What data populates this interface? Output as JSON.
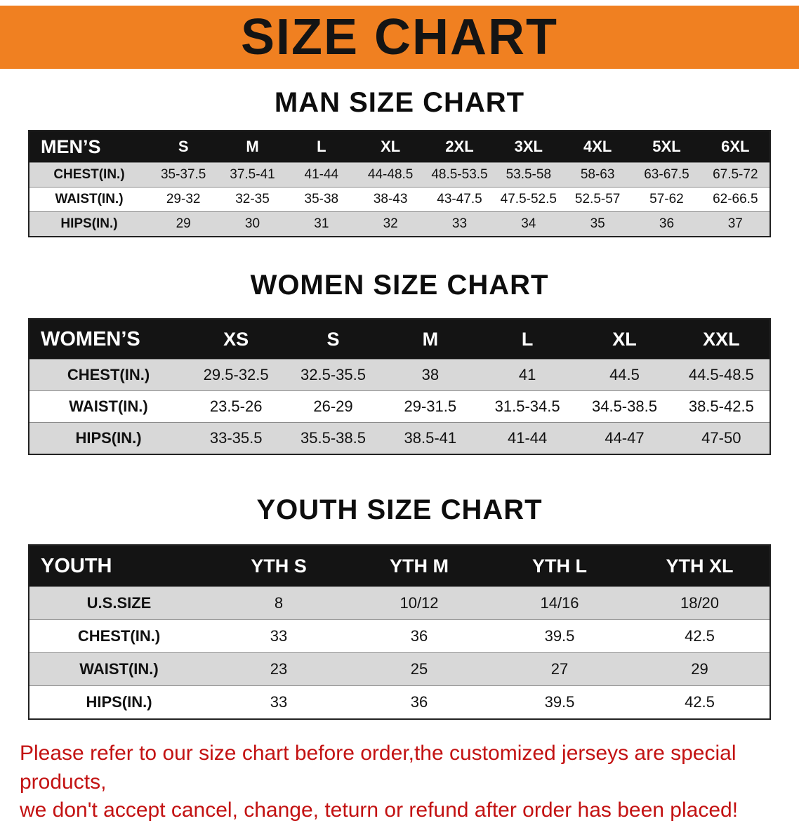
{
  "banner": {
    "title": "SIZE CHART",
    "bg_color": "#f08021",
    "text_color": "#141414"
  },
  "men": {
    "heading": "MAN SIZE CHART",
    "table": {
      "header": [
        "MEN’S",
        "S",
        "M",
        "L",
        "XL",
        "2XL",
        "3XL",
        "4XL",
        "5XL",
        "6XL"
      ],
      "rows": [
        {
          "label": "CHEST(IN.)",
          "values": [
            "35-37.5",
            "37.5-41",
            "41-44",
            "44-48.5",
            "48.5-53.5",
            "53.5-58",
            "58-63",
            "63-67.5",
            "67.5-72"
          ]
        },
        {
          "label": "WAIST(IN.)",
          "values": [
            "29-32",
            "32-35",
            "35-38",
            "38-43",
            "43-47.5",
            "47.5-52.5",
            "52.5-57",
            "57-62",
            "62-66.5"
          ]
        },
        {
          "label": "HIPS(IN.)",
          "values": [
            "29",
            "30",
            "31",
            "32",
            "33",
            "34",
            "35",
            "36",
            "37"
          ]
        }
      ]
    }
  },
  "women": {
    "heading": "WOMEN SIZE CHART",
    "table": {
      "header": [
        "WOMEN’S",
        "XS",
        "S",
        "M",
        "L",
        "XL",
        "XXL"
      ],
      "rows": [
        {
          "label": "CHEST(IN.)",
          "values": [
            "29.5-32.5",
            "32.5-35.5",
            "38",
            "41",
            "44.5",
            "44.5-48.5"
          ]
        },
        {
          "label": "WAIST(IN.)",
          "values": [
            "23.5-26",
            "26-29",
            "29-31.5",
            "31.5-34.5",
            "34.5-38.5",
            "38.5-42.5"
          ]
        },
        {
          "label": "HIPS(IN.)",
          "values": [
            "33-35.5",
            "35.5-38.5",
            "38.5-41",
            "41-44",
            "44-47",
            "47-50"
          ]
        }
      ]
    }
  },
  "youth": {
    "heading": "YOUTH SIZE CHART",
    "table": {
      "header": [
        "YOUTH",
        "YTH S",
        "YTH M",
        "YTH L",
        "YTH XL"
      ],
      "rows": [
        {
          "label": "U.S.SIZE",
          "values": [
            "8",
            "10/12",
            "14/16",
            "18/20"
          ]
        },
        {
          "label": "CHEST(IN.)",
          "values": [
            "33",
            "36",
            "39.5",
            "42.5"
          ]
        },
        {
          "label": "WAIST(IN.)",
          "values": [
            "23",
            "25",
            "27",
            "29"
          ]
        },
        {
          "label": "HIPS(IN.)",
          "values": [
            "33",
            "36",
            "39.5",
            "42.5"
          ]
        }
      ]
    }
  },
  "footer": {
    "line1": "Please refer to our size chart before order,the customized jerseys are special products,",
    "line2": "we don't accept cancel, change, teturn or refund after order has been placed!",
    "text_color": "#c31212"
  }
}
